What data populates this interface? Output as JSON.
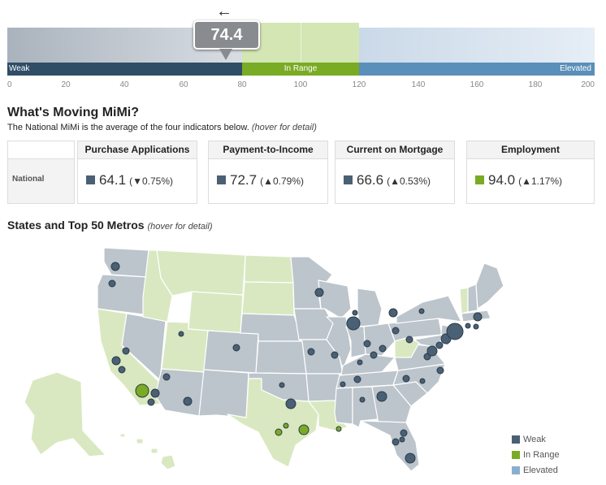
{
  "gauge": {
    "value": "74.4",
    "zones": {
      "weak": "Weak",
      "in_range": "In Range",
      "elevated": "Elevated"
    },
    "ticks": [
      "0",
      "20",
      "40",
      "60",
      "80",
      "100",
      "120",
      "140",
      "160",
      "180",
      "200"
    ]
  },
  "moving": {
    "title": "What's Moving MiMi?",
    "description": "The National MiMi is the average of the four indicators below.",
    "hover_hint": "(hover for detail)",
    "row_label": "National",
    "indicators": [
      {
        "name": "Purchase Applications",
        "value": "64.1",
        "change": "(▼0.75%)",
        "status": "weak"
      },
      {
        "name": "Payment-to-Income",
        "value": "72.7",
        "change": "(▲0.79%)",
        "status": "weak"
      },
      {
        "name": "Current on Mortgage",
        "value": "66.6",
        "change": "(▲0.53%)",
        "status": "weak"
      },
      {
        "name": "Employment",
        "value": "94.0",
        "change": "(▲1.17%)",
        "status": "in_range"
      }
    ]
  },
  "map": {
    "title": "States and Top 50 Metros",
    "hover_hint": "(hover for detail)"
  },
  "legend": {
    "weak": "Weak",
    "in_range": "In Range",
    "elevated": "Elevated"
  },
  "colors": {
    "weak": "#4a6074",
    "in_range": "#7aab24",
    "elevated": "#8aaed0",
    "state_weak": "#bcc4cc",
    "state_in_range": "#d9e8c0",
    "state_border": "#ffffff"
  }
}
